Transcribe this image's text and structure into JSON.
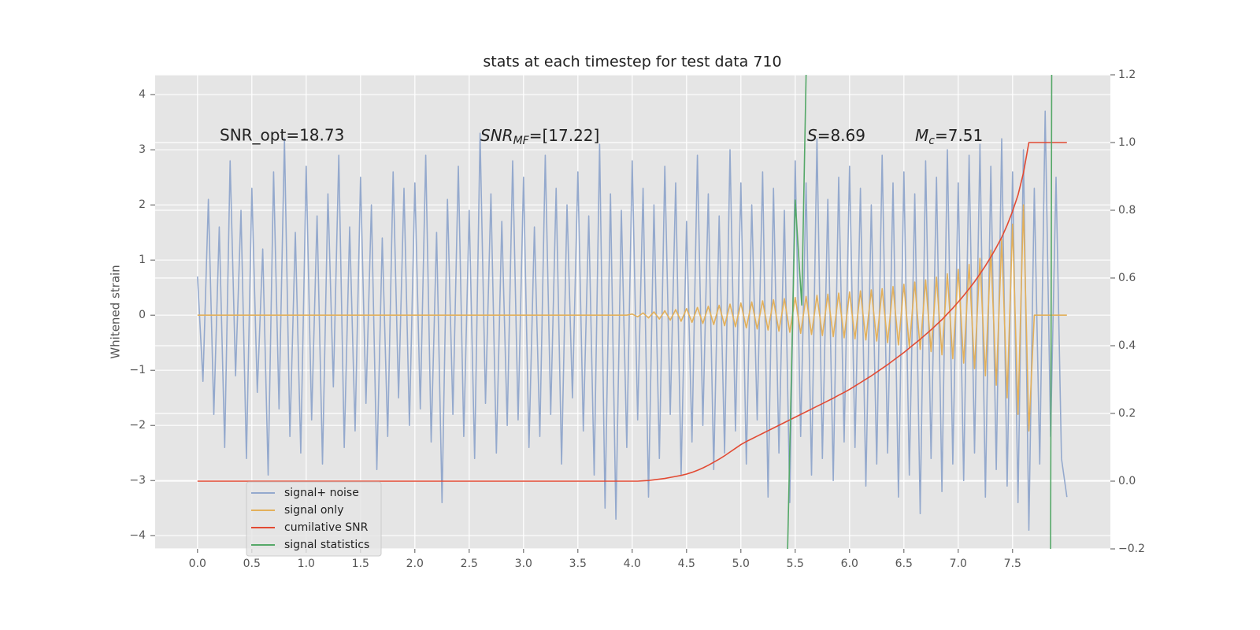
{
  "chart_data": {
    "type": "line",
    "title": "stats at each timestep for test data 710",
    "ylabel": "Whitened strain",
    "annotations": [
      {
        "text": "SNR_opt=18.73"
      },
      {
        "main": "SNR",
        "sub": "MF",
        "rest": "=[17.22]"
      },
      {
        "main": "S",
        "rest": "=8.69"
      },
      {
        "main": "M",
        "sub": "c",
        "rest": "=7.51"
      }
    ],
    "grid": true,
    "legend": "lower left",
    "xlim": [
      -0.39,
      8.4
    ],
    "ylim": [
      -4.24,
      4.36
    ],
    "y2lim": [
      -0.2,
      1.2
    ],
    "xticks": [
      {
        "value": 0,
        "label": "0.0"
      },
      0.5,
      {
        "value": 1,
        "label": "1.0"
      },
      1.5,
      {
        "value": 2,
        "label": "2.0"
      },
      2.5,
      {
        "value": 3,
        "label": "3.0"
      },
      3.5,
      {
        "value": 4,
        "label": "4.0"
      },
      4.5,
      {
        "value": 5,
        "label": "5.0"
      },
      5.5,
      {
        "value": 6,
        "label": "6.0"
      },
      6.5,
      {
        "value": 7,
        "label": "7.0"
      },
      7.5
    ],
    "yticks": [
      {
        "value": -4,
        "label": "−4"
      },
      {
        "value": -3,
        "label": "−3"
      },
      {
        "value": -2,
        "label": "−2"
      },
      {
        "value": -1,
        "label": "−1"
      },
      0,
      1,
      2,
      3,
      4
    ],
    "y2ticks": [
      {
        "value": -0.2,
        "label": "−0.2"
      },
      {
        "value": 0,
        "label": "0.0"
      },
      0.2,
      0.4,
      0.6,
      0.8,
      {
        "value": 1,
        "label": "1.0"
      },
      1.2
    ],
    "x": [
      0,
      0.05,
      0.1,
      0.15,
      0.2,
      0.25,
      0.3,
      0.35,
      0.4,
      0.45,
      0.5,
      0.55,
      0.6,
      0.65,
      0.7,
      0.75,
      0.8,
      0.85,
      0.9,
      0.95,
      1,
      1.05,
      1.1,
      1.15,
      1.2,
      1.25,
      1.3,
      1.35,
      1.4,
      1.45,
      1.5,
      1.55,
      1.6,
      1.65,
      1.7,
      1.75,
      1.8,
      1.85,
      1.9,
      1.95,
      2,
      2.05,
      2.1,
      2.15,
      2.2,
      2.25,
      2.3,
      2.35,
      2.4,
      2.45,
      2.5,
      2.55,
      2.6,
      2.65,
      2.7,
      2.75,
      2.8,
      2.85,
      2.9,
      2.95,
      3,
      3.05,
      3.1,
      3.15,
      3.2,
      3.25,
      3.3,
      3.35,
      3.4,
      3.45,
      3.5,
      3.55,
      3.6,
      3.65,
      3.7,
      3.75,
      3.8,
      3.85,
      3.9,
      3.95,
      4,
      4.05,
      4.1,
      4.15,
      4.2,
      4.25,
      4.3,
      4.35,
      4.4,
      4.45,
      4.5,
      4.55,
      4.6,
      4.65,
      4.7,
      4.75,
      4.8,
      4.85,
      4.9,
      4.95,
      5,
      5.05,
      5.1,
      5.15,
      5.2,
      5.25,
      5.3,
      5.35,
      5.4,
      5.45,
      5.5,
      5.55,
      5.6,
      5.65,
      5.7,
      5.75,
      5.8,
      5.85,
      5.9,
      5.95,
      6,
      6.05,
      6.1,
      6.15,
      6.2,
      6.25,
      6.3,
      6.35,
      6.4,
      6.45,
      6.5,
      6.55,
      6.6,
      6.65,
      6.7,
      6.75,
      6.8,
      6.85,
      6.9,
      6.95,
      7,
      7.05,
      7.1,
      7.15,
      7.2,
      7.25,
      7.3,
      7.35,
      7.4,
      7.45,
      7.5,
      7.55,
      7.6,
      7.65,
      7.7,
      7.75,
      7.8,
      7.85,
      7.9,
      7.95,
      8
    ],
    "series": [
      {
        "name": "signal+ noise",
        "color": "#94a9cd",
        "values": [
          0.7,
          -1.2,
          2.1,
          -1.8,
          1.6,
          -2.4,
          2.8,
          -1.1,
          1.9,
          -2.6,
          2.3,
          -1.4,
          1.2,
          -2.9,
          2.6,
          -1.7,
          3.2,
          -2.2,
          1.5,
          -2.5,
          2.7,
          -1.9,
          1.8,
          -2.7,
          2.2,
          -1.3,
          2.9,
          -2.4,
          1.6,
          -2.1,
          2.5,
          -1.6,
          2.0,
          -2.8,
          1.4,
          -2.2,
          2.6,
          -1.5,
          2.3,
          -2.0,
          2.4,
          -1.7,
          2.9,
          -2.3,
          1.5,
          -3.4,
          2.1,
          -1.8,
          2.7,
          -2.2,
          1.9,
          -2.6,
          3.3,
          -1.6,
          2.2,
          -2.5,
          1.7,
          -2.0,
          2.8,
          -1.9,
          2.5,
          -2.4,
          1.6,
          -2.2,
          2.9,
          -1.8,
          2.3,
          -2.7,
          2.0,
          -1.5,
          2.6,
          -2.1,
          1.8,
          -2.9,
          3.1,
          -3.5,
          2.2,
          -3.7,
          1.9,
          -2.4,
          2.8,
          -1.9,
          2.3,
          -3.3,
          2.0,
          -2.6,
          2.7,
          -1.8,
          2.4,
          -2.9,
          1.7,
          -2.3,
          2.9,
          -2.0,
          2.2,
          -2.8,
          1.8,
          -2.5,
          3.0,
          -2.1,
          2.4,
          -2.7,
          2.0,
          -1.9,
          2.6,
          -3.3,
          2.3,
          -2.5,
          1.9,
          -3.4,
          2.8,
          -2.2,
          2.4,
          -2.9,
          3.2,
          -2.6,
          2.1,
          -3.0,
          2.5,
          -2.3,
          2.7,
          -2.4,
          2.3,
          -3.1,
          2.0,
          -2.7,
          2.9,
          -2.5,
          2.4,
          -3.3,
          2.6,
          -2.9,
          2.2,
          -3.6,
          2.8,
          -2.6,
          2.5,
          -3.2,
          3.0,
          -2.7,
          2.4,
          -3.0,
          2.9,
          -2.5,
          3.1,
          -3.3,
          2.7,
          -2.8,
          3.2,
          -3.1,
          2.6,
          -3.4,
          3.0,
          -3.9,
          2.3,
          -2.7,
          3.7,
          -2.2,
          2.5,
          -2.6,
          -3.3
        ]
      },
      {
        "name": "signal only",
        "color": "#e3b05a",
        "values": [
          0,
          0,
          0,
          0,
          0,
          0,
          0,
          0,
          0,
          0,
          0,
          0,
          0,
          0,
          0,
          0,
          0,
          0,
          0,
          0,
          0,
          0,
          0,
          0,
          0,
          0,
          0,
          0,
          0,
          0,
          0,
          0,
          0,
          0,
          0,
          0,
          0,
          0,
          0,
          0,
          0,
          0,
          0,
          0,
          0,
          0,
          0,
          0,
          0,
          0,
          0,
          0,
          0,
          0,
          0,
          0,
          0,
          0,
          0,
          0,
          0,
          0,
          0,
          0,
          0,
          0,
          0,
          0,
          0,
          0,
          0,
          0,
          0,
          0,
          0,
          0,
          0,
          0,
          0,
          0,
          0.02,
          -0.03,
          0.04,
          -0.05,
          0.06,
          -0.07,
          0.08,
          -0.09,
          0.1,
          -0.11,
          0.12,
          -0.13,
          0.14,
          -0.15,
          0.16,
          -0.17,
          0.18,
          -0.19,
          0.2,
          -0.21,
          0.22,
          -0.23,
          0.24,
          -0.25,
          0.26,
          -0.27,
          0.28,
          -0.29,
          0.3,
          -0.31,
          0.32,
          -0.33,
          0.34,
          -0.35,
          0.36,
          -0.37,
          0.38,
          -0.39,
          0.4,
          -0.41,
          0.42,
          -0.43,
          0.44,
          -0.45,
          0.46,
          -0.47,
          0.48,
          -0.5,
          0.52,
          -0.54,
          0.56,
          -0.58,
          0.6,
          -0.62,
          0.64,
          -0.66,
          0.69,
          -0.72,
          0.75,
          -0.79,
          0.83,
          -0.87,
          0.92,
          -0.97,
          1.03,
          -1.1,
          1.18,
          -1.27,
          1.38,
          -1.5,
          1.65,
          -1.8,
          2.0,
          -2.1,
          0,
          0,
          0,
          0,
          0,
          0,
          0
        ]
      },
      {
        "name": "cumilative SNR",
        "color": "#e24a33",
        "axis": "y2",
        "values": [
          0,
          0,
          0,
          0,
          0,
          0,
          0,
          0,
          0,
          0,
          0,
          0,
          0,
          0,
          0,
          0,
          0,
          0,
          0,
          0,
          0,
          0,
          0,
          0,
          0,
          0,
          0,
          0,
          0,
          0,
          0,
          0,
          0,
          0,
          0,
          0,
          0,
          0,
          0,
          0,
          0,
          0,
          0,
          0,
          0,
          0,
          0,
          0,
          0,
          0,
          0,
          0,
          0,
          0,
          0,
          0,
          0,
          0,
          0,
          0,
          0,
          0,
          0,
          0,
          0,
          0,
          0,
          0,
          0,
          0,
          0,
          0,
          0,
          0,
          0,
          0,
          0,
          0,
          0,
          0,
          0,
          0,
          0.001,
          0.002,
          0.004,
          0.006,
          0.008,
          0.011,
          0.014,
          0.017,
          0.021,
          0.026,
          0.032,
          0.039,
          0.047,
          0.056,
          0.065,
          0.075,
          0.086,
          0.097,
          0.108,
          0.117,
          0.125,
          0.133,
          0.141,
          0.149,
          0.157,
          0.165,
          0.173,
          0.181,
          0.189,
          0.197,
          0.205,
          0.213,
          0.221,
          0.229,
          0.237,
          0.245,
          0.254,
          0.262,
          0.271,
          0.281,
          0.291,
          0.301,
          0.311,
          0.322,
          0.333,
          0.344,
          0.356,
          0.368,
          0.38,
          0.393,
          0.406,
          0.419,
          0.433,
          0.447,
          0.462,
          0.477,
          0.494,
          0.511,
          0.529,
          0.548,
          0.568,
          0.589,
          0.612,
          0.636,
          0.662,
          0.69,
          0.72,
          0.756,
          0.797,
          0.845,
          0.91,
          1,
          1,
          1,
          1,
          1,
          1,
          1,
          1
        ]
      },
      {
        "name": "signal statistics",
        "color": "#55a868",
        "axis": "y2",
        "x": [
          5.43,
          5.5,
          5.56,
          5.6,
          7.8,
          7.85,
          7.86
        ],
        "values": [
          -0.2,
          0.83,
          0.52,
          1.2,
          null,
          -0.2,
          1.2
        ]
      }
    ]
  }
}
